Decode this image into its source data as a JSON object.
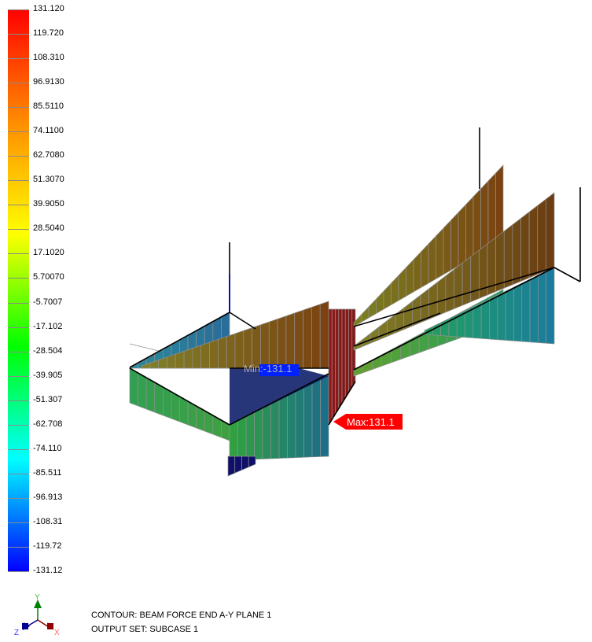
{
  "legend": {
    "labels": [
      "131.120",
      "119.720",
      "108.310",
      "96.9130",
      "85.5110",
      "74.1100",
      "62.7080",
      "51.3070",
      "39.9050",
      "28.5040",
      "17.1020",
      "5.70070",
      "-5.7007",
      "-17.102",
      "-28.504",
      "-39.905",
      "-51.307",
      "-62.708",
      "-74.110",
      "-85.511",
      "-96.913",
      "-108.31",
      "-119.72",
      "-131.12"
    ],
    "colors": [
      "#ff0000",
      "#ff8c00",
      "#ffff00",
      "#00ff00",
      "#00ffff",
      "#0000ff"
    ],
    "max": 131.12,
    "min": -131.12
  },
  "markers": {
    "min_label": "Min:-131.1",
    "max_label": "Max:131.1",
    "min_color": "#0020ff",
    "max_color": "#ff0000"
  },
  "triad": {
    "x": "X",
    "y": "Y",
    "z": "Z"
  },
  "info": {
    "contour": "CONTOUR: BEAM FORCE END A-Y PLANE 1",
    "output_set": "OUTPUT SET: SUBCASE 1"
  }
}
